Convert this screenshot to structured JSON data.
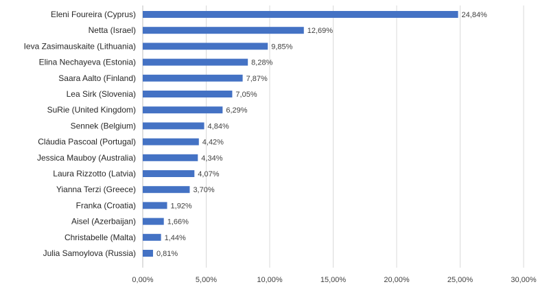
{
  "chart_data": {
    "type": "bar",
    "orientation": "horizontal",
    "categories": [
      "Eleni Foureira (Cyprus)",
      "Netta (Israel)",
      "Ieva Zasimauskaite (Lithuania)",
      "Elina Nechayeva (Estonia)",
      "Saara Aalto (Finland)",
      "Lea Sirk (Slovenia)",
      "SuRie (United Kingdom)",
      "Sennek (Belgium)",
      "Cláudia Pascoal (Portugal)",
      "Jessica Mauboy (Australia)",
      "Laura Rizzotto (Latvia)",
      "Yianna Terzi (Greece)",
      "Franka (Croatia)",
      "Aisel (Azerbaijan)",
      "Christabelle (Malta)",
      "Julia Samoylova (Russia)"
    ],
    "values": [
      24.84,
      12.69,
      9.85,
      8.28,
      7.87,
      7.05,
      6.29,
      4.84,
      4.42,
      4.34,
      4.07,
      3.7,
      1.92,
      1.66,
      1.44,
      0.81
    ],
    "value_labels": [
      "24,84%",
      "12,69%",
      "9,85%",
      "8,28%",
      "7,87%",
      "7,05%",
      "6,29%",
      "4,84%",
      "4,42%",
      "4,34%",
      "4,07%",
      "3,70%",
      "1,92%",
      "1,66%",
      "1,44%",
      "0,81%"
    ],
    "xlim": [
      0,
      30
    ],
    "x_ticks": [
      0,
      5,
      10,
      15,
      20,
      25,
      30
    ],
    "x_tick_labels": [
      "0,00%",
      "5,00%",
      "10,00%",
      "15,00%",
      "20,00%",
      "25,00%",
      "30,00%"
    ],
    "grid": true,
    "bar_color": "#4472c4",
    "title": "",
    "xlabel": "",
    "ylabel": ""
  }
}
